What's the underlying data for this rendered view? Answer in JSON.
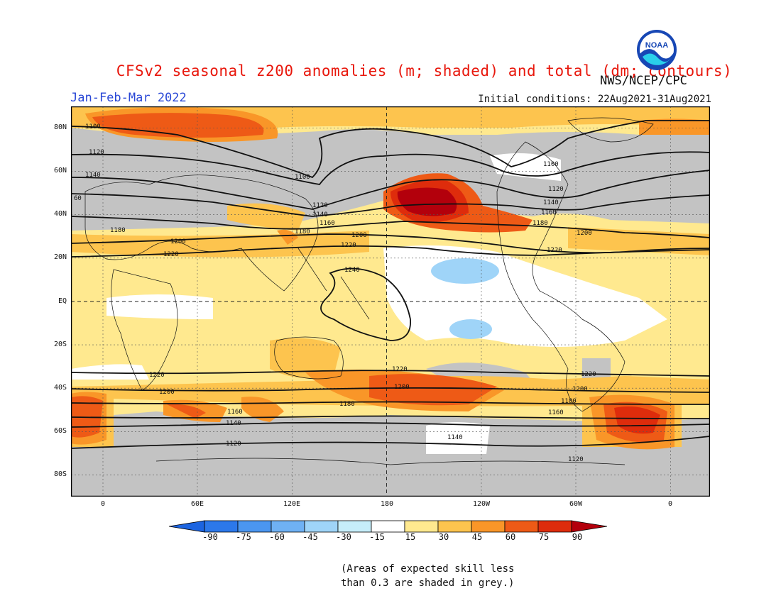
{
  "title": "CFSv2 seasonal z200 anomalies (m; shaded) and total (dm; contours)",
  "agency": "NWS/NCEP/CPC",
  "logo_text": "NOAA",
  "season": "Jan-Feb-Mar 2022",
  "initial_conditions": "Initial conditions: 22Aug2021-31Aug2021",
  "lat_labels": [
    "80N",
    "60N",
    "40N",
    "20N",
    "EQ",
    "20S",
    "40S",
    "60S",
    "80S"
  ],
  "lon_labels": [
    "0",
    "60E",
    "120E",
    "180",
    "120W",
    "60W",
    "0"
  ],
  "colorbar": {
    "ticks": [
      "-90",
      "-75",
      "-60",
      "-45",
      "-30",
      "-15",
      "15",
      "30",
      "45",
      "60",
      "75",
      "90"
    ],
    "colors": [
      "#1c64e0",
      "#2c78ea",
      "#4b96f0",
      "#6fb1f4",
      "#9fd4f8",
      "#c6eefa",
      "#ffffff",
      "#ffe98f",
      "#fdc44e",
      "#f99628",
      "#ee5a16",
      "#de2c0c",
      "#b3000c"
    ]
  },
  "contour_labels": [
    "1100",
    "1120",
    "1140",
    "1160",
    "1180",
    "1200",
    "1220",
    "1240",
    "60",
    "1180"
  ],
  "skill_note": [
    "(Areas of expected skill less",
    "than 0.3 are shaded in grey.)"
  ],
  "colors": {
    "title": "#e8170c",
    "season": "#2a48d6",
    "grey_mask": "#c3c3c3"
  }
}
